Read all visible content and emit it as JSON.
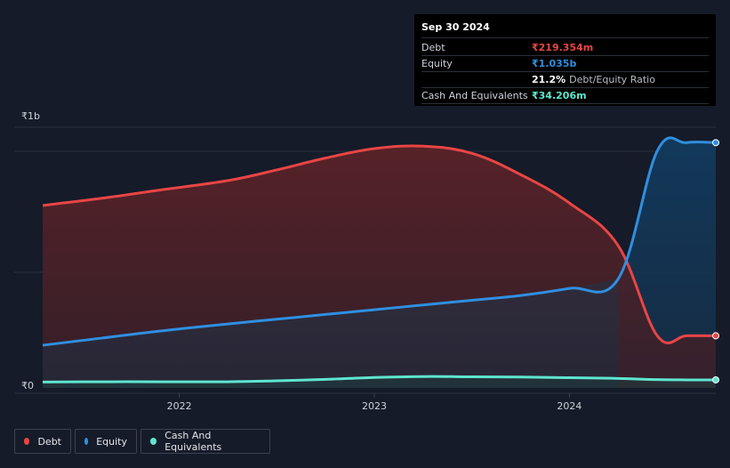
{
  "colors": {
    "background": "#151b28",
    "debt": "#e84545",
    "equity": "#2f8fe0",
    "cash": "#5ee6cf"
  },
  "tooltip": {
    "date": "Sep 30 2024",
    "rows": [
      {
        "label": "Debt",
        "value": "₹219.354m"
      },
      {
        "label": "Equity",
        "value": "₹1.035b"
      },
      {
        "label": "",
        "value": "21.2%",
        "suffix": "Debt/Equity Ratio"
      },
      {
        "label": "Cash And Equivalents",
        "value": "₹34.206m"
      }
    ]
  },
  "legend": [
    {
      "label": "Debt",
      "color": "#e84545"
    },
    {
      "label": "Equity",
      "color": "#2f8fe0"
    },
    {
      "label": "Cash And Equivalents",
      "color": "#5ee6cf"
    }
  ],
  "chart_data": {
    "type": "area",
    "title": "",
    "xlabel": "",
    "ylabel": "",
    "y_unit": "₹",
    "ylim": [
      0,
      1.1
    ],
    "y_ticks": [
      {
        "value": 0,
        "label": "₹0"
      },
      {
        "value": 1.1,
        "label": "₹1b"
      }
    ],
    "x_ticks": [
      {
        "value": 2022.0,
        "label": "2022"
      },
      {
        "value": 2023.0,
        "label": "2023"
      },
      {
        "value": 2024.0,
        "label": "2024"
      }
    ],
    "xlim": [
      2021.15,
      2024.75
    ],
    "grid": true,
    "legend_position": "bottom-left",
    "series": [
      {
        "name": "Debt",
        "color": "#e84545",
        "x": [
          2021.3,
          2021.6,
          2021.9,
          2022.25,
          2022.5,
          2022.75,
          2023.0,
          2023.25,
          2023.5,
          2023.75,
          2024.0,
          2024.25,
          2024.45,
          2024.6,
          2024.75
        ],
        "values": [
          0.77,
          0.8,
          0.835,
          0.875,
          0.92,
          0.97,
          1.01,
          1.02,
          0.99,
          0.9,
          0.78,
          0.6,
          0.22,
          0.22,
          0.22
        ]
      },
      {
        "name": "Equity",
        "color": "#2f8fe0",
        "x": [
          2021.3,
          2021.6,
          2021.9,
          2022.25,
          2022.5,
          2022.75,
          2023.0,
          2023.25,
          2023.5,
          2023.75,
          2024.0,
          2024.25,
          2024.45,
          2024.6,
          2024.75
        ],
        "values": [
          0.18,
          0.21,
          0.24,
          0.27,
          0.29,
          0.31,
          0.33,
          0.35,
          0.37,
          0.39,
          0.42,
          0.46,
          1.0,
          1.035,
          1.035
        ]
      },
      {
        "name": "Cash And Equivalents",
        "color": "#5ee6cf",
        "x": [
          2021.3,
          2021.6,
          2021.9,
          2022.25,
          2022.5,
          2022.75,
          2023.0,
          2023.25,
          2023.5,
          2023.75,
          2024.0,
          2024.25,
          2024.45,
          2024.6,
          2024.75
        ],
        "values": [
          0.025,
          0.026,
          0.026,
          0.026,
          0.03,
          0.036,
          0.044,
          0.048,
          0.047,
          0.046,
          0.043,
          0.04,
          0.035,
          0.034,
          0.034
        ]
      }
    ]
  }
}
